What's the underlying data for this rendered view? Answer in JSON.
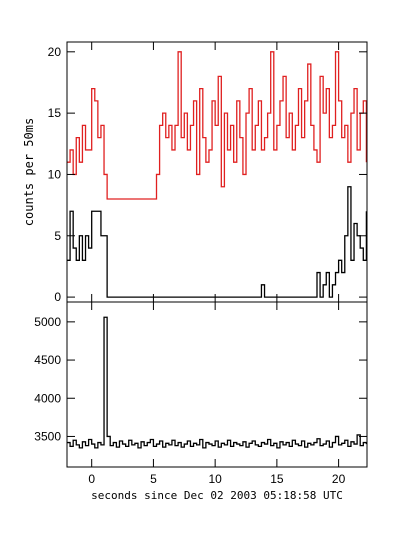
{
  "chart_data": [
    {
      "type": "line",
      "drawstyle": "steps",
      "ylabel": "counts per 50ms",
      "x": [
        -2,
        -1.75,
        -1.5,
        -1.25,
        -1,
        -0.75,
        -0.5,
        -0.25,
        0,
        0.25,
        0.5,
        0.75,
        1,
        1.25,
        1.5,
        1.75,
        2,
        2.25,
        2.5,
        2.75,
        3,
        3.25,
        3.5,
        3.75,
        4,
        4.25,
        4.5,
        4.75,
        5,
        5.25,
        5.5,
        5.75,
        6,
        6.25,
        6.5,
        6.75,
        7,
        7.25,
        7.5,
        7.75,
        8,
        8.25,
        8.5,
        8.75,
        9,
        9.25,
        9.5,
        9.75,
        10,
        10.25,
        10.5,
        10.75,
        11,
        11.25,
        11.5,
        11.75,
        12,
        12.25,
        12.5,
        12.75,
        13,
        13.25,
        13.5,
        13.75,
        14,
        14.25,
        14.5,
        14.75,
        15,
        15.25,
        15.5,
        15.75,
        16,
        16.25,
        16.5,
        16.75,
        17,
        17.25,
        17.5,
        17.75,
        18,
        18.25,
        18.5,
        18.75,
        19,
        19.25,
        19.5,
        19.75,
        20,
        20.25,
        20.5,
        20.75,
        21,
        21.25,
        21.5,
        21.75,
        22,
        22.25
      ],
      "series": [
        {
          "color": "#e02020",
          "values": [
            11,
            12,
            10,
            13,
            11,
            14,
            12,
            12,
            17,
            16,
            13,
            14,
            10,
            8,
            8,
            8,
            8,
            8,
            8,
            8,
            8,
            8,
            8,
            8,
            8,
            8,
            8,
            8,
            8,
            10,
            14,
            15,
            13,
            14,
            12,
            14,
            20,
            13,
            15,
            12,
            14,
            16,
            10,
            17,
            13,
            11,
            12,
            16,
            14,
            18,
            9,
            15,
            12,
            14,
            11,
            16,
            13,
            10,
            15,
            17,
            12,
            14,
            16,
            12,
            13,
            15,
            20,
            12,
            14,
            16,
            18,
            13,
            15,
            12,
            14,
            17,
            13,
            16,
            19,
            14,
            12,
            11,
            18,
            15,
            17,
            13,
            14,
            20,
            16,
            13,
            14,
            11,
            15,
            17,
            12,
            15,
            16,
            11
          ]
        },
        {
          "color": "#000000",
          "values": [
            3,
            7,
            4,
            3,
            5,
            3,
            5,
            4,
            7,
            7,
            7,
            5,
            5,
            0,
            0,
            0,
            0,
            0,
            0,
            0,
            0,
            0,
            0,
            0,
            0,
            0,
            0,
            0,
            0,
            0,
            0,
            0,
            0,
            0,
            0,
            0,
            0,
            0,
            0,
            0,
            0,
            0,
            0,
            0,
            0,
            0,
            0,
            0,
            0,
            0,
            0,
            0,
            0,
            0,
            0,
            0,
            0,
            0,
            0,
            0,
            0,
            0,
            0,
            1,
            0,
            0,
            0,
            0,
            0,
            0,
            0,
            0,
            0,
            0,
            0,
            0,
            0,
            0,
            0,
            0,
            0,
            2,
            0,
            1,
            2,
            0,
            1,
            2,
            3,
            2,
            5,
            9,
            3,
            6,
            5,
            4,
            3,
            7
          ]
        }
      ],
      "xlim": [
        -2,
        22.3
      ],
      "ylim": [
        -0.4,
        20.8
      ],
      "xticks": [
        0,
        5,
        10,
        15,
        20
      ],
      "yticks": [
        0,
        5,
        10,
        15,
        20
      ]
    },
    {
      "type": "line",
      "drawstyle": "steps",
      "xlabel": "seconds since Dec 02 2003 05:18:58 UTC",
      "x": [
        -2,
        -1.75,
        -1.5,
        -1.25,
        -1,
        -0.75,
        -0.5,
        -0.25,
        0,
        0.25,
        0.5,
        0.75,
        1,
        1.25,
        1.5,
        1.75,
        2,
        2.25,
        2.5,
        2.75,
        3,
        3.25,
        3.5,
        3.75,
        4,
        4.25,
        4.5,
        4.75,
        5,
        5.25,
        5.5,
        5.75,
        6,
        6.25,
        6.5,
        6.75,
        7,
        7.25,
        7.5,
        7.75,
        8,
        8.25,
        8.5,
        8.75,
        9,
        9.25,
        9.5,
        9.75,
        10,
        10.25,
        10.5,
        10.75,
        11,
        11.25,
        11.5,
        11.75,
        12,
        12.25,
        12.5,
        12.75,
        13,
        13.25,
        13.5,
        13.75,
        14,
        14.25,
        14.5,
        14.75,
        15,
        15.25,
        15.5,
        15.75,
        16,
        16.25,
        16.5,
        16.75,
        17,
        17.25,
        17.5,
        17.75,
        18,
        18.25,
        18.5,
        18.75,
        19,
        19.25,
        19.5,
        19.75,
        20,
        20.25,
        20.5,
        20.75,
        21,
        21.25,
        21.5,
        21.75,
        22,
        22.25
      ],
      "series": [
        {
          "color": "#000000",
          "values": [
            3420,
            3370,
            3450,
            3390,
            3350,
            3430,
            3380,
            3460,
            3400,
            3350,
            3420,
            3390,
            5060,
            3500,
            3380,
            3420,
            3360,
            3440,
            3400,
            3370,
            3450,
            3390,
            3410,
            3350,
            3430,
            3380,
            3420,
            3460,
            3370,
            3400,
            3440,
            3360,
            3410,
            3390,
            3450,
            3380,
            3420,
            3360,
            3400,
            3440,
            3370,
            3410,
            3390,
            3460,
            3350,
            3420,
            3400,
            3380,
            3440,
            3360,
            3410,
            3390,
            3450,
            3370,
            3420,
            3400,
            3380,
            3430,
            3360,
            3410,
            3440,
            3390,
            3370,
            3420,
            3400,
            3460,
            3380,
            3410,
            3350,
            3430,
            3390,
            3420,
            3370,
            3450,
            3400,
            3380,
            3440,
            3360,
            3410,
            3390,
            3420,
            3470,
            3380,
            3400,
            3440,
            3360,
            3420,
            3500,
            3390,
            3410,
            3450,
            3370,
            3430,
            3400,
            3520,
            3380,
            3420,
            3400
          ]
        }
      ],
      "xlim": [
        -2,
        22.3
      ],
      "ylim": [
        3100,
        5260
      ],
      "xticks": [
        0,
        5,
        10,
        15,
        20
      ],
      "yticks": [
        3500,
        4000,
        4500,
        5000
      ]
    }
  ]
}
